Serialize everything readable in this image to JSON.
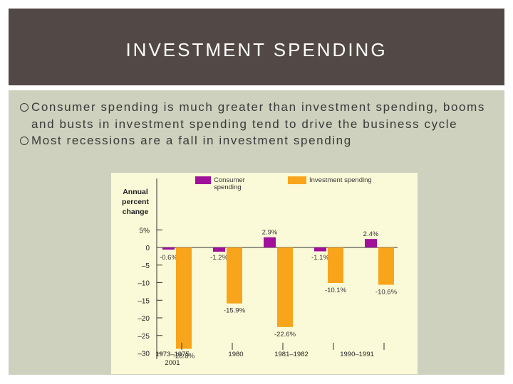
{
  "slide": {
    "title": "INVESTMENT SPENDING",
    "bullets": [
      "Consumer spending is much greater than investment spending, booms and busts in investment spending tend to drive the business cycle",
      "Most recessions are a fall in investment spending"
    ]
  },
  "colors": {
    "title_bar": "#524845",
    "content_bg": "#cdd1bd",
    "chart_bg": "#fafad8",
    "consumer": "#a0109a",
    "investment": "#f9a51b"
  },
  "chart_data": {
    "type": "bar",
    "ylabel": "Annual percent change",
    "ylabel_lines": [
      "Annual",
      "percent",
      "change"
    ],
    "yticks": [
      5,
      0,
      -5,
      -10,
      -15,
      -20,
      -25,
      -30
    ],
    "ytick_labels": [
      "5%",
      "0",
      "–5",
      "–10",
      "–15",
      "–20",
      "–25",
      "–30"
    ],
    "ylim": [
      -30,
      5
    ],
    "categories": [
      "1973–1975",
      "1980",
      "1981–1982",
      "1990–1991",
      "2001"
    ],
    "series": [
      {
        "name": "Consumer spending",
        "name_lines": [
          "Consumer",
          "spending"
        ],
        "color": "#a0109a",
        "values": [
          -0.6,
          -1.2,
          2.9,
          -1.1,
          2.4
        ],
        "labels": [
          "-0.6%",
          "-1.2%",
          "2.9%",
          "-1.1%",
          "2.4%"
        ]
      },
      {
        "name": "Investment spending",
        "name_lines": [
          "Investment spending"
        ],
        "color": "#f9a51b",
        "values": [
          -28.8,
          -15.9,
          -22.6,
          -10.1,
          -10.6
        ],
        "labels": [
          "-28.8%",
          "-15.9%",
          "-22.6%",
          "-10.1%",
          "-10.6%"
        ]
      }
    ],
    "legend": "top"
  }
}
